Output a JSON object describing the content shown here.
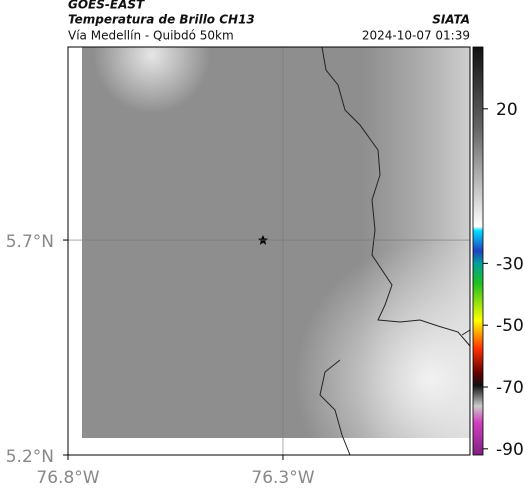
{
  "header": {
    "source": "GOES-EAST",
    "title": "Temperatura de Brillo CH13",
    "brand": "SIATA",
    "subtitle": "Vía Medellín - Quibdó 50km",
    "datetime": "2024-10-07 01:39"
  },
  "map": {
    "xlim": [
      -76.8,
      -75.865
    ],
    "ylim": [
      5.2,
      6.149
    ],
    "xticks": [
      {
        "value": -76.8,
        "label": "76.8°W"
      },
      {
        "value": -76.3,
        "label": "76.3°W"
      }
    ],
    "yticks": [
      {
        "value": 5.2,
        "label": "5.2°N"
      },
      {
        "value": 5.7,
        "label": "5.7°N"
      }
    ],
    "grid": true
  },
  "colorbar": {
    "clim": [
      -92,
      40
    ],
    "ticks": [
      20,
      -30,
      -50,
      -70,
      -90
    ]
  }
}
